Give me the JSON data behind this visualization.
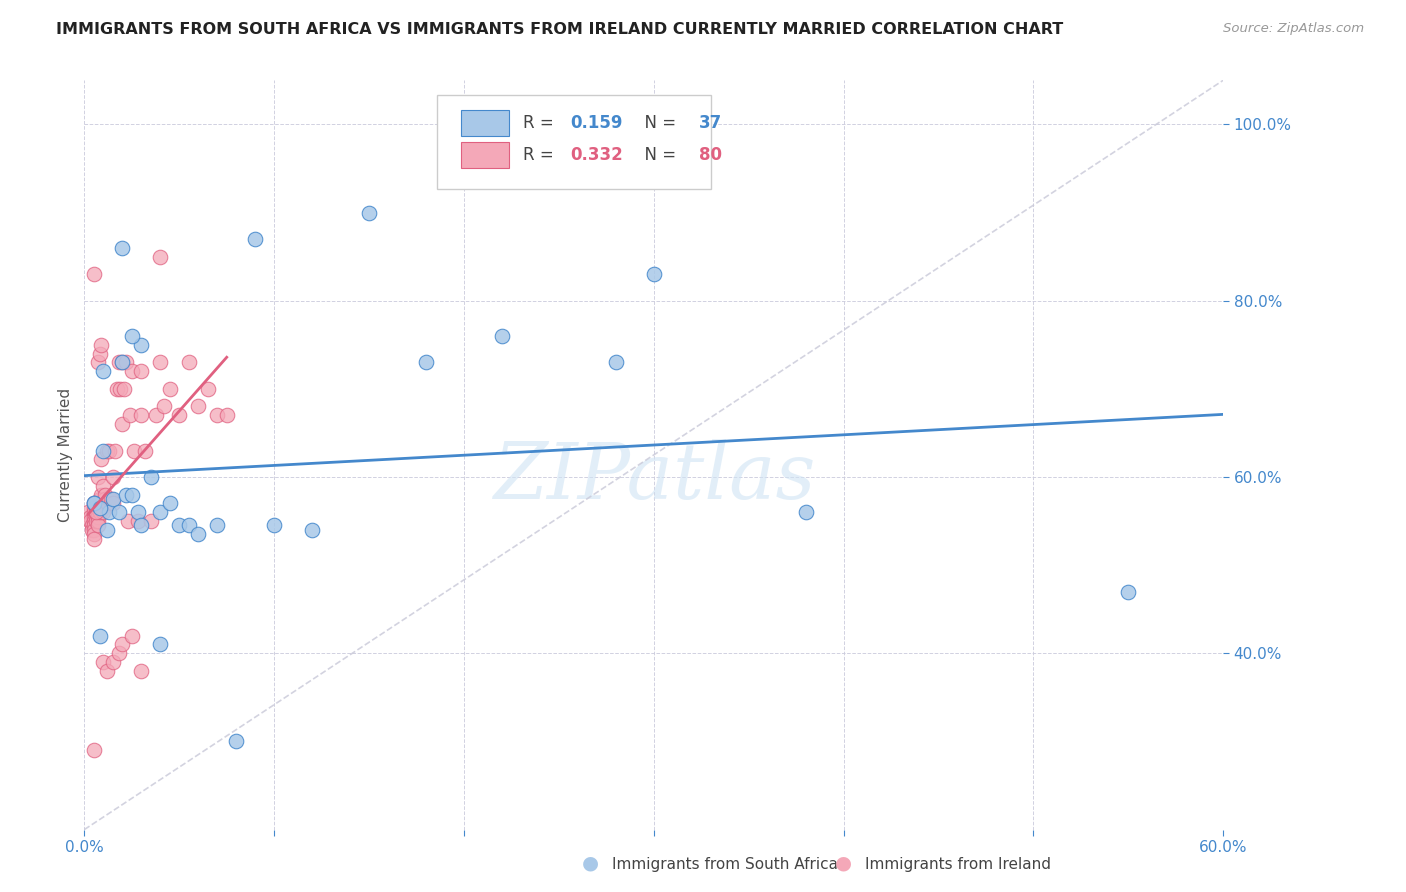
{
  "title": "IMMIGRANTS FROM SOUTH AFRICA VS IMMIGRANTS FROM IRELAND CURRENTLY MARRIED CORRELATION CHART",
  "source": "Source: ZipAtlas.com",
  "xlabel_bottom": [
    "Immigrants from South Africa",
    "Immigrants from Ireland"
  ],
  "ylabel": "Currently Married",
  "xlim": [
    0.0,
    0.6
  ],
  "ylim": [
    0.2,
    1.05
  ],
  "xtick_positions": [
    0.0,
    0.1,
    0.2,
    0.3,
    0.4,
    0.5,
    0.6
  ],
  "xtick_labels": [
    "0.0%",
    "",
    "",
    "",
    "",
    "",
    "60.0%"
  ],
  "ytick_positions": [
    0.4,
    0.6,
    0.8,
    1.0
  ],
  "ytick_labels": [
    "40.0%",
    "60.0%",
    "80.0%",
    "100.0%"
  ],
  "color_blue": "#a8c8e8",
  "color_pink": "#f4a8b8",
  "line_color_blue": "#4488cc",
  "line_color_pink": "#e06080",
  "diag_line_color": "#c8c8d8",
  "watermark": "ZIPatlas",
  "blue_R": "0.159",
  "blue_N": "37",
  "pink_R": "0.332",
  "pink_N": "80",
  "blue_scatter_x": [
    0.005,
    0.008,
    0.01,
    0.013,
    0.015,
    0.018,
    0.02,
    0.022,
    0.025,
    0.028,
    0.03,
    0.035,
    0.04,
    0.045,
    0.05,
    0.055,
    0.06,
    0.07,
    0.08,
    0.09,
    0.1,
    0.12,
    0.15,
    0.18,
    0.22,
    0.28,
    0.3,
    0.38,
    0.55,
    0.01,
    0.02,
    0.03,
    0.04,
    0.005,
    0.008,
    0.012,
    0.025
  ],
  "blue_scatter_y": [
    0.57,
    0.42,
    0.63,
    0.56,
    0.575,
    0.56,
    0.73,
    0.58,
    0.58,
    0.56,
    0.545,
    0.6,
    0.56,
    0.57,
    0.545,
    0.545,
    0.535,
    0.545,
    0.3,
    0.87,
    0.545,
    0.54,
    0.9,
    0.73,
    0.76,
    0.73,
    0.83,
    0.56,
    0.47,
    0.72,
    0.86,
    0.75,
    0.41,
    0.57,
    0.565,
    0.54,
    0.76
  ],
  "pink_scatter_x": [
    0.002,
    0.003,
    0.003,
    0.004,
    0.004,
    0.005,
    0.005,
    0.005,
    0.005,
    0.005,
    0.005,
    0.005,
    0.005,
    0.005,
    0.006,
    0.006,
    0.006,
    0.007,
    0.007,
    0.007,
    0.007,
    0.007,
    0.008,
    0.008,
    0.008,
    0.009,
    0.009,
    0.01,
    0.01,
    0.01,
    0.011,
    0.011,
    0.012,
    0.012,
    0.013,
    0.013,
    0.014,
    0.015,
    0.015,
    0.016,
    0.017,
    0.018,
    0.019,
    0.02,
    0.02,
    0.021,
    0.022,
    0.023,
    0.024,
    0.025,
    0.026,
    0.028,
    0.03,
    0.03,
    0.032,
    0.035,
    0.038,
    0.04,
    0.042,
    0.045,
    0.05,
    0.055,
    0.06,
    0.065,
    0.07,
    0.075,
    0.005,
    0.005,
    0.006,
    0.007,
    0.008,
    0.009,
    0.01,
    0.012,
    0.015,
    0.018,
    0.02,
    0.025,
    0.03,
    0.04
  ],
  "pink_scatter_y": [
    0.56,
    0.555,
    0.55,
    0.545,
    0.54,
    0.57,
    0.565,
    0.56,
    0.555,
    0.55,
    0.545,
    0.54,
    0.535,
    0.53,
    0.56,
    0.555,
    0.55,
    0.56,
    0.555,
    0.55,
    0.545,
    0.6,
    0.565,
    0.56,
    0.575,
    0.58,
    0.62,
    0.565,
    0.56,
    0.59,
    0.575,
    0.58,
    0.57,
    0.63,
    0.575,
    0.63,
    0.575,
    0.6,
    0.57,
    0.63,
    0.7,
    0.73,
    0.7,
    0.66,
    0.73,
    0.7,
    0.73,
    0.55,
    0.67,
    0.72,
    0.63,
    0.55,
    0.67,
    0.72,
    0.63,
    0.55,
    0.67,
    0.73,
    0.68,
    0.7,
    0.67,
    0.73,
    0.68,
    0.7,
    0.67,
    0.67,
    0.83,
    0.29,
    0.56,
    0.73,
    0.74,
    0.75,
    0.39,
    0.38,
    0.39,
    0.4,
    0.41,
    0.42,
    0.38,
    0.85
  ]
}
